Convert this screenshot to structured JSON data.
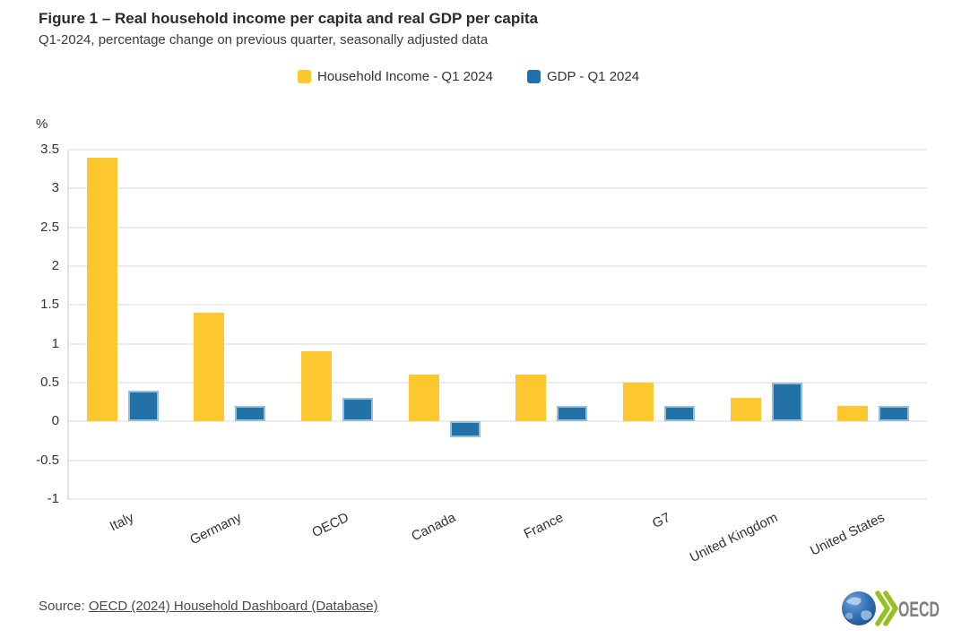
{
  "chart_data": {
    "type": "bar",
    "title": "Figure 1 – Real household income per capita and real GDP per capita",
    "subtitle": "Q1-2024, percentage change on previous quarter, seasonally adjusted data",
    "unit_label": "%",
    "categories": [
      "Italy",
      "Germany",
      "OECD",
      "Canada",
      "France",
      "G7",
      "United Kingdom",
      "United States"
    ],
    "series": [
      {
        "name": "Household Income - Q1 2024",
        "color": "#fdc72f",
        "values": [
          3.4,
          1.4,
          0.9,
          0.6,
          0.6,
          0.5,
          0.3,
          0.2
        ]
      },
      {
        "name": "GDP - Q1 2024",
        "color": "#2272a8",
        "border_color": "#94bfda",
        "values": [
          0.4,
          0.2,
          0.3,
          -0.2,
          0.2,
          0.2,
          0.5,
          0.2
        ]
      }
    ],
    "ylim": [
      -1,
      3.5
    ],
    "ytick_step": 0.5,
    "grid": true,
    "legend_position": "top-center",
    "colors": {
      "gridline": "#ececec",
      "axis_line": "#e2e2e2",
      "text": "#333333"
    }
  },
  "footer": {
    "source_prefix": "Source: ",
    "source_link_text": "OECD (2024) Household Dashboard (Database)"
  },
  "logo": {
    "org_name": "OECD"
  }
}
